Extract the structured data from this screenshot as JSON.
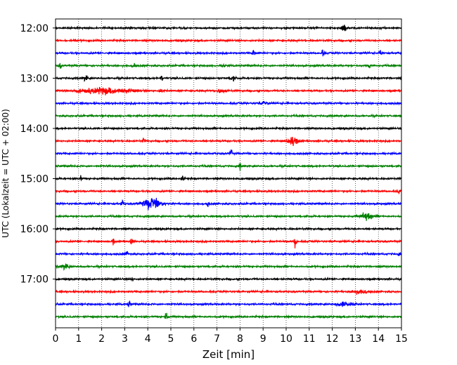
{
  "chart_data": {
    "type": "line",
    "title": "",
    "xlabel": "Zeit  [min]",
    "ylabel": "UTC (Lokalzeit = UTC + 02:00)",
    "xlim": [
      0,
      15
    ],
    "x_ticks": [
      "0",
      "1",
      "2",
      "3",
      "4",
      "5",
      "6",
      "7",
      "8",
      "9",
      "10",
      "11",
      "12",
      "13",
      "14",
      "15"
    ],
    "y_ticks": [
      {
        "hour": 12.0,
        "label": "12:00"
      },
      {
        "hour": 13.0,
        "label": "13:00"
      },
      {
        "hour": 14.0,
        "label": "14:00"
      },
      {
        "hour": 15.0,
        "label": "15:00"
      },
      {
        "hour": 16.0,
        "label": "16:00"
      },
      {
        "hour": 17.0,
        "label": "17:00"
      }
    ],
    "ylim_hours": [
      12.0,
      17.75
    ],
    "vertical_grid": true,
    "grid_style": "dotted",
    "trace_colors": [
      "#000000",
      "#ff0000",
      "#0000ff",
      "#008000"
    ],
    "traces": [
      {
        "start": "12:00",
        "events": [
          {
            "x": 12.5,
            "amp": 1.0,
            "w": 0.12
          }
        ]
      },
      {
        "start": "12:15",
        "events": []
      },
      {
        "start": "12:30",
        "events": [
          {
            "x": 8.6,
            "amp": 0.9,
            "w": 0.05
          },
          {
            "x": 11.6,
            "amp": 0.9,
            "w": 0.05
          },
          {
            "x": 14.1,
            "amp": 0.7,
            "w": 0.05
          }
        ]
      },
      {
        "start": "12:45",
        "events": [
          {
            "x": 0.2,
            "amp": 0.7,
            "w": 0.05
          },
          {
            "x": 3.4,
            "amp": 0.5,
            "w": 0.05
          },
          {
            "x": 7.3,
            "amp": 0.5,
            "w": 0.06
          },
          {
            "x": 13.6,
            "amp": 0.6,
            "w": 0.05
          }
        ]
      },
      {
        "start": "13:00",
        "events": [
          {
            "x": 1.3,
            "amp": 0.5,
            "w": 0.1
          },
          {
            "x": 4.6,
            "amp": 0.5,
            "w": 0.05
          },
          {
            "x": 7.7,
            "amp": 0.4,
            "w": 0.1
          }
        ]
      },
      {
        "start": "13:15",
        "events": [
          {
            "x": 2.2,
            "amp": 0.6,
            "w": 1.1
          },
          {
            "x": 4.6,
            "amp": 0.5,
            "w": 0.1
          },
          {
            "x": 7.2,
            "amp": 0.4,
            "w": 0.2
          }
        ]
      },
      {
        "start": "13:30",
        "events": [
          {
            "x": 9.0,
            "amp": 0.4,
            "w": 0.2
          }
        ]
      },
      {
        "start": "13:45",
        "events": []
      },
      {
        "start": "14:00",
        "events": []
      },
      {
        "start": "14:15",
        "events": [
          {
            "x": 10.3,
            "amp": 1.1,
            "w": 0.2
          },
          {
            "x": 3.8,
            "amp": 0.5,
            "w": 0.05
          }
        ]
      },
      {
        "start": "14:30",
        "events": [
          {
            "x": 7.6,
            "amp": 0.9,
            "w": 0.05
          }
        ]
      },
      {
        "start": "14:45",
        "events": [
          {
            "x": 8.0,
            "amp": 0.6,
            "w": 0.05
          }
        ]
      },
      {
        "start": "15:00",
        "events": [
          {
            "x": 1.1,
            "amp": 0.6,
            "w": 0.05
          },
          {
            "x": 5.5,
            "amp": 0.6,
            "w": 0.05
          }
        ]
      },
      {
        "start": "15:15",
        "events": [
          {
            "x": 14.9,
            "amp": 0.5,
            "w": 0.05
          }
        ]
      },
      {
        "start": "15:30",
        "events": [
          {
            "x": 4.2,
            "amp": 1.1,
            "w": 0.4
          },
          {
            "x": 2.9,
            "amp": 0.6,
            "w": 0.05
          },
          {
            "x": 6.6,
            "amp": 0.6,
            "w": 0.05
          }
        ]
      },
      {
        "start": "15:45",
        "events": [
          {
            "x": 13.5,
            "amp": 0.7,
            "w": 0.25
          }
        ]
      },
      {
        "start": "16:00",
        "events": []
      },
      {
        "start": "16:15",
        "events": [
          {
            "x": 2.5,
            "amp": 0.9,
            "w": 0.05
          },
          {
            "x": 3.3,
            "amp": 0.9,
            "w": 0.05
          },
          {
            "x": 10.4,
            "amp": 1.0,
            "w": 0.05
          }
        ]
      },
      {
        "start": "16:30",
        "events": [
          {
            "x": 3.1,
            "amp": 0.4,
            "w": 0.1
          },
          {
            "x": 14.9,
            "amp": 0.5,
            "w": 0.05
          }
        ]
      },
      {
        "start": "16:45",
        "events": [
          {
            "x": 0.4,
            "amp": 0.5,
            "w": 0.2
          }
        ]
      },
      {
        "start": "17:00",
        "events": [
          {
            "x": 3.3,
            "amp": 0.4,
            "w": 0.05
          }
        ]
      },
      {
        "start": "17:15",
        "events": [
          {
            "x": 13.2,
            "amp": 0.4,
            "w": 0.3
          }
        ]
      },
      {
        "start": "17:30",
        "events": [
          {
            "x": 3.2,
            "amp": 0.8,
            "w": 0.05
          },
          {
            "x": 12.5,
            "amp": 0.5,
            "w": 0.3
          }
        ]
      },
      {
        "start": "17:45",
        "events": [
          {
            "x": 4.8,
            "amp": 1.1,
            "w": 0.05
          }
        ]
      }
    ]
  }
}
